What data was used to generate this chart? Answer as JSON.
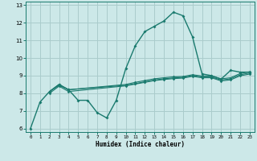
{
  "title": "",
  "xlabel": "Humidex (Indice chaleur)",
  "xlim": [
    -0.5,
    23.5
  ],
  "ylim": [
    5.8,
    13.2
  ],
  "xticks": [
    0,
    1,
    2,
    3,
    4,
    5,
    6,
    7,
    8,
    9,
    10,
    11,
    12,
    13,
    14,
    15,
    16,
    17,
    18,
    19,
    20,
    21,
    22,
    23
  ],
  "yticks": [
    6,
    7,
    8,
    9,
    10,
    11,
    12,
    13
  ],
  "background_color": "#cce8e8",
  "grid_color": "#aacccc",
  "line_color": "#1a7a6e",
  "series": [
    {
      "x": [
        0,
        1,
        2,
        3,
        4,
        5,
        6,
        7,
        8,
        9,
        10,
        11,
        12,
        13,
        14,
        15,
        16,
        17,
        18,
        19,
        20,
        21,
        22,
        23
      ],
      "y": [
        6.0,
        7.5,
        8.1,
        8.5,
        8.2,
        7.6,
        7.6,
        6.9,
        6.6,
        7.6,
        9.4,
        10.7,
        11.5,
        11.8,
        12.1,
        12.6,
        12.4,
        11.2,
        9.1,
        9.0,
        8.8,
        9.3,
        9.2,
        9.2
      ]
    },
    {
      "x": [
        2,
        3,
        4,
        10,
        11,
        12,
        13,
        14,
        15,
        16,
        17,
        18,
        19,
        20,
        21,
        22,
        23
      ],
      "y": [
        8.1,
        8.5,
        8.2,
        8.5,
        8.62,
        8.72,
        8.82,
        8.88,
        8.93,
        8.95,
        9.05,
        8.98,
        8.98,
        8.82,
        8.88,
        9.12,
        9.22
      ]
    },
    {
      "x": [
        2,
        3,
        4,
        10,
        11,
        12,
        13,
        14,
        15,
        16,
        17,
        18,
        19,
        20,
        21,
        22,
        23
      ],
      "y": [
        8.1,
        8.45,
        8.2,
        8.45,
        8.55,
        8.65,
        8.75,
        8.82,
        8.87,
        8.9,
        9.0,
        8.92,
        8.92,
        8.75,
        8.82,
        9.05,
        9.15
      ]
    },
    {
      "x": [
        2,
        3,
        4,
        10,
        11,
        12,
        13,
        14,
        15,
        16,
        17,
        18,
        19,
        20,
        21,
        22,
        23
      ],
      "y": [
        8.0,
        8.4,
        8.1,
        8.42,
        8.52,
        8.62,
        8.72,
        8.78,
        8.83,
        8.86,
        8.96,
        8.88,
        8.88,
        8.7,
        8.76,
        8.99,
        9.09
      ]
    }
  ]
}
